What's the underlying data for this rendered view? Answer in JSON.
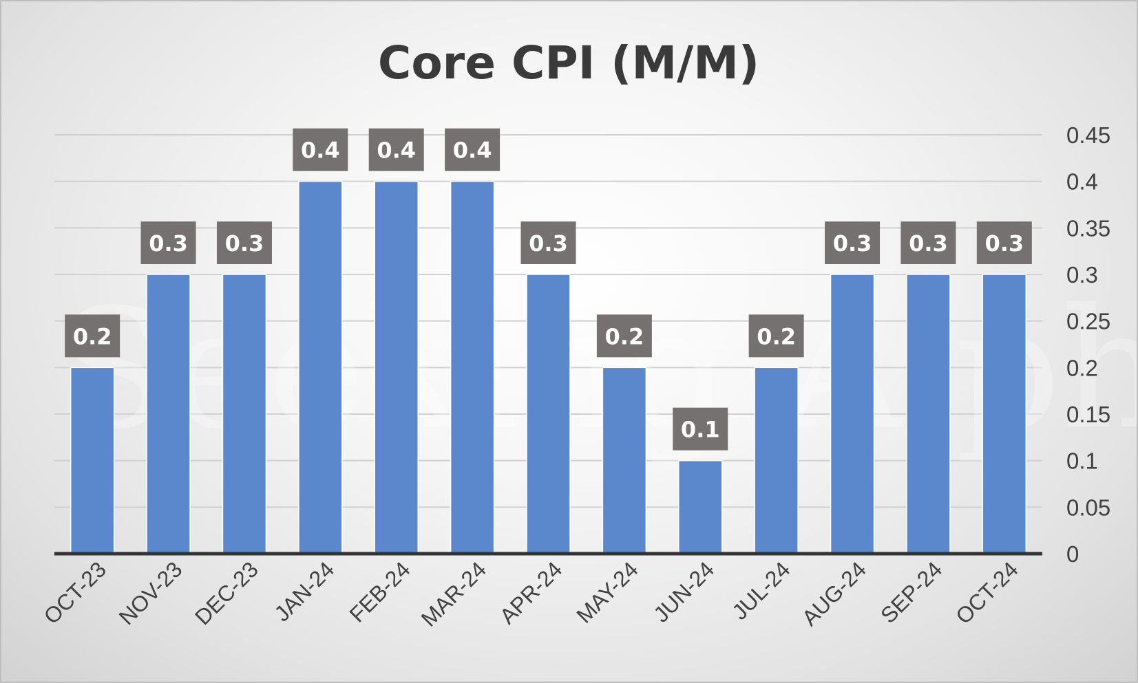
{
  "chart_data": {
    "type": "bar",
    "title": "Core CPI (M/M)",
    "categories": [
      "OCT-23",
      "NOV-23",
      "DEC-23",
      "JAN-24",
      "FEB-24",
      "MAR-24",
      "APR-24",
      "MAY-24",
      "JUN-24",
      "JUL-24",
      "AUG-24",
      "SEP-24",
      "OCT-24"
    ],
    "values": [
      0.2,
      0.3,
      0.3,
      0.4,
      0.4,
      0.4,
      0.3,
      0.2,
      0.1,
      0.2,
      0.3,
      0.3,
      0.3
    ],
    "data_labels": [
      "0.2",
      "0.3",
      "0.3",
      "0.4",
      "0.4",
      "0.4",
      "0.3",
      "0.2",
      "0.1",
      "0.2",
      "0.3",
      "0.3",
      "0.3"
    ],
    "xlabel": "",
    "ylabel": "",
    "ylim": [
      0,
      0.45
    ],
    "y_ticks": [
      "0",
      "0.05",
      "0.1",
      "0.15",
      "0.2",
      "0.25",
      "0.3",
      "0.35",
      "0.4",
      "0.45"
    ],
    "y_axis_side": "right",
    "grid": true,
    "legend": "none",
    "watermark": "Seeking Alpha",
    "colors": {
      "bar": "#5b87cc",
      "data_label_bg": "#767171",
      "gridline": "#d0d0d0",
      "axis": "#333333"
    }
  }
}
